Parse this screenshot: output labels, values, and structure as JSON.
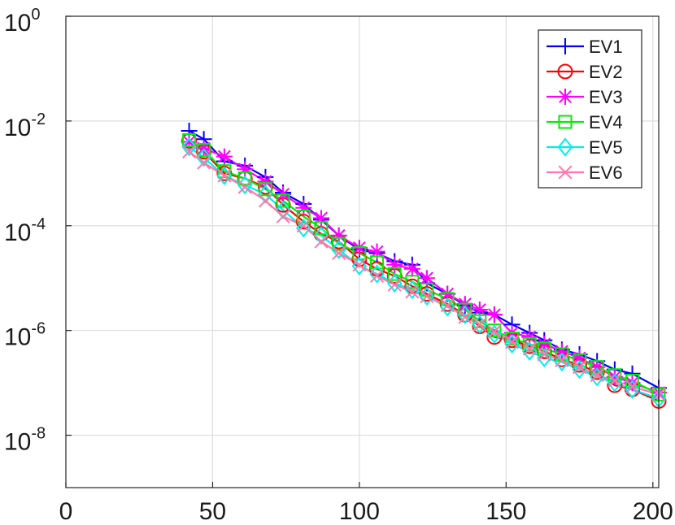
{
  "chart_data": {
    "type": "line",
    "y_scale": "log",
    "xlim": [
      0,
      202
    ],
    "ylim": [
      1e-09,
      1
    ],
    "grid": true,
    "legend_position": "top-right",
    "x_ticks": [
      0,
      50,
      100,
      150,
      200
    ],
    "x_tick_labels": [
      "0",
      "50",
      "100",
      "150",
      "200"
    ],
    "y_ticks": [
      1,
      0.01,
      0.0001,
      1e-06,
      1e-08
    ],
    "y_tick_bases": [
      "10",
      "10",
      "10",
      "10",
      "10"
    ],
    "y_tick_exponents": [
      "0",
      "-2",
      "-4",
      "-6",
      "-8"
    ],
    "x": [
      42,
      47,
      54,
      61,
      68,
      74,
      81,
      87,
      93,
      100,
      106,
      112,
      118,
      123,
      130,
      136,
      141,
      146,
      152,
      158,
      163,
      169,
      175,
      181,
      187,
      193,
      202
    ],
    "series": [
      {
        "name": "EV1",
        "color": "#0000ff",
        "marker": "plus",
        "values": [
          0.0065,
          0.0045,
          0.0017,
          0.0014,
          0.00085,
          0.00043,
          0.00026,
          0.00013,
          6.5e-05,
          3.5e-05,
          3e-05,
          2.1e-05,
          1.8e-05,
          8e-06,
          5e-06,
          3e-06,
          2.2e-06,
          2e-06,
          1.3e-06,
          9e-07,
          6.5e-07,
          4.3e-07,
          3.5e-07,
          2.6e-07,
          1.8e-07,
          1.5e-07,
          8e-08
        ]
      },
      {
        "name": "EV2",
        "color": "#ff0000",
        "marker": "circle",
        "values": [
          0.0042,
          0.0026,
          0.001,
          0.0008,
          0.00055,
          0.00025,
          0.00012,
          7e-05,
          5e-05,
          2.3e-05,
          1.5e-05,
          1.1e-05,
          7e-06,
          5e-06,
          3.2e-06,
          2e-06,
          1.2e-06,
          7.5e-07,
          6.5e-07,
          5e-07,
          4e-07,
          2.8e-07,
          2.2e-07,
          1.6e-07,
          9e-08,
          7.5e-08,
          4.5e-08
        ]
      },
      {
        "name": "EV3",
        "color": "#ff00ff",
        "marker": "star",
        "values": [
          0.004,
          0.003,
          0.0021,
          0.0012,
          0.0007,
          0.0004,
          0.00022,
          0.00014,
          6.5e-05,
          3.8e-05,
          3.2e-05,
          1.8e-05,
          1.5e-05,
          1e-05,
          5e-06,
          3.2e-06,
          2.5e-06,
          2e-06,
          9e-07,
          7.5e-07,
          5.5e-07,
          4e-07,
          3e-07,
          2e-07,
          1.3e-07,
          1e-07,
          6.5e-08
        ]
      },
      {
        "name": "EV4",
        "color": "#00ee00",
        "marker": "square",
        "values": [
          0.0043,
          0.0028,
          0.0011,
          0.0008,
          0.0005,
          0.0003,
          0.00015,
          9e-05,
          4.5e-05,
          3e-05,
          2e-05,
          1.2e-05,
          8.5e-06,
          6e-06,
          4e-06,
          2.5e-06,
          1.5e-06,
          1e-06,
          7e-07,
          5.5e-07,
          4.5e-07,
          3.5e-07,
          2.7e-07,
          2e-07,
          1.4e-07,
          1.1e-07,
          6e-08
        ]
      },
      {
        "name": "EV5",
        "color": "#00eeee",
        "marker": "diamond",
        "values": [
          0.0032,
          0.002,
          0.0009,
          0.0006,
          0.0004,
          0.0002,
          9e-05,
          6.5e-05,
          3.5e-05,
          1.7e-05,
          1.2e-05,
          8e-06,
          6e-06,
          4.5e-06,
          2.8e-06,
          2e-06,
          1.3e-06,
          8.5e-07,
          5.5e-07,
          4e-07,
          3e-07,
          2.5e-07,
          1.8e-07,
          1.3e-07,
          1e-07,
          7.5e-08,
          5e-08
        ]
      },
      {
        "name": "EV6",
        "color": "#ff77aa",
        "marker": "x",
        "values": [
          0.0026,
          0.0016,
          0.0009,
          0.00055,
          0.0003,
          0.00015,
          0.0001,
          5e-05,
          3e-05,
          1.8e-05,
          1.1e-05,
          7.5e-06,
          5.5e-06,
          4.5e-06,
          3e-06,
          1.8e-06,
          1.3e-06,
          9.5e-07,
          6e-07,
          4.5e-07,
          3.5e-07,
          2.7e-07,
          2e-07,
          1.4e-07,
          1.1e-07,
          8.5e-08,
          6e-08
        ]
      }
    ]
  }
}
